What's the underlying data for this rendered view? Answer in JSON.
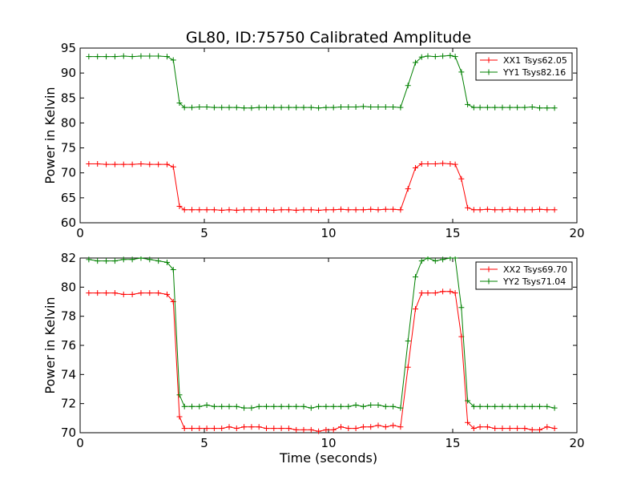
{
  "figure": {
    "title": "GL80, ID:75750 Calibrated Amplitude"
  },
  "chart_data": [
    {
      "type": "line",
      "title": "GL80, ID:75750 Calibrated Amplitude",
      "xlabel": "",
      "ylabel": "Power in Kelvin",
      "xlim": [
        0,
        20
      ],
      "ylim": [
        60,
        95
      ],
      "xticks": [
        0,
        5,
        10,
        15,
        20
      ],
      "yticks": [
        60,
        65,
        70,
        75,
        80,
        85,
        90,
        95
      ],
      "xtick_labels": [
        "0",
        "5",
        "10",
        "15",
        "20"
      ],
      "ytick_labels": [
        "60",
        "65",
        "70",
        "75",
        "80",
        "85",
        "90",
        "95"
      ],
      "grid": false,
      "legend_position": "top-right",
      "x": [
        0.35,
        0.7,
        1.05,
        1.4,
        1.75,
        2.1,
        2.45,
        2.8,
        3.15,
        3.5,
        3.75,
        4.0,
        4.2,
        4.5,
        4.8,
        5.1,
        5.4,
        5.7,
        6.0,
        6.3,
        6.6,
        6.9,
        7.2,
        7.5,
        7.8,
        8.1,
        8.4,
        8.7,
        9.0,
        9.3,
        9.6,
        9.9,
        10.2,
        10.5,
        10.8,
        11.1,
        11.4,
        11.7,
        12.0,
        12.3,
        12.6,
        12.9,
        13.2,
        13.5,
        13.75,
        14.0,
        14.3,
        14.6,
        14.9,
        15.1,
        15.35,
        15.6,
        15.85,
        16.1,
        16.4,
        16.7,
        17.0,
        17.3,
        17.6,
        17.9,
        18.2,
        18.5,
        18.8,
        19.1
      ],
      "series": [
        {
          "name": "XX1 Tsys62.05",
          "color": "#ff0000",
          "values": [
            71.8,
            71.8,
            71.7,
            71.7,
            71.7,
            71.7,
            71.8,
            71.7,
            71.7,
            71.7,
            71.2,
            63.3,
            62.6,
            62.6,
            62.6,
            62.6,
            62.6,
            62.5,
            62.6,
            62.5,
            62.6,
            62.6,
            62.6,
            62.6,
            62.5,
            62.6,
            62.6,
            62.5,
            62.6,
            62.6,
            62.5,
            62.6,
            62.6,
            62.7,
            62.6,
            62.6,
            62.6,
            62.7,
            62.6,
            62.7,
            62.7,
            62.6,
            66.8,
            71.0,
            71.8,
            71.8,
            71.8,
            71.9,
            71.8,
            71.7,
            68.8,
            63.0,
            62.6,
            62.6,
            62.7,
            62.6,
            62.6,
            62.7,
            62.6,
            62.6,
            62.6,
            62.7,
            62.6,
            62.6
          ]
        },
        {
          "name": "YY1 Tsys82.16",
          "color": "#008000",
          "values": [
            93.3,
            93.3,
            93.3,
            93.3,
            93.4,
            93.3,
            93.4,
            93.4,
            93.4,
            93.3,
            92.6,
            84.0,
            83.1,
            83.1,
            83.2,
            83.2,
            83.1,
            83.1,
            83.1,
            83.1,
            83.0,
            83.0,
            83.1,
            83.1,
            83.1,
            83.1,
            83.1,
            83.1,
            83.1,
            83.1,
            83.0,
            83.1,
            83.1,
            83.2,
            83.2,
            83.2,
            83.3,
            83.2,
            83.2,
            83.2,
            83.2,
            83.1,
            87.5,
            92.1,
            93.2,
            93.4,
            93.3,
            93.4,
            93.5,
            93.3,
            90.2,
            83.7,
            83.1,
            83.1,
            83.1,
            83.1,
            83.1,
            83.1,
            83.1,
            83.1,
            83.2,
            83.0,
            83.0,
            83.0
          ]
        }
      ]
    },
    {
      "type": "line",
      "title": "",
      "xlabel": "Time (seconds)",
      "ylabel": "Power in Kelvin",
      "xlim": [
        0,
        20
      ],
      "ylim": [
        70,
        82
      ],
      "xticks": [
        0,
        5,
        10,
        15,
        20
      ],
      "yticks": [
        70,
        72,
        74,
        76,
        78,
        80,
        82
      ],
      "xtick_labels": [
        "0",
        "5",
        "10",
        "15",
        "20"
      ],
      "ytick_labels": [
        "70",
        "72",
        "74",
        "76",
        "78",
        "80",
        "82"
      ],
      "grid": false,
      "legend_position": "top-right",
      "x": [
        0.35,
        0.7,
        1.05,
        1.4,
        1.75,
        2.1,
        2.45,
        2.8,
        3.15,
        3.5,
        3.75,
        4.0,
        4.2,
        4.5,
        4.8,
        5.1,
        5.4,
        5.7,
        6.0,
        6.3,
        6.6,
        6.9,
        7.2,
        7.5,
        7.8,
        8.1,
        8.4,
        8.7,
        9.0,
        9.3,
        9.6,
        9.9,
        10.2,
        10.5,
        10.8,
        11.1,
        11.4,
        11.7,
        12.0,
        12.3,
        12.6,
        12.9,
        13.2,
        13.5,
        13.75,
        14.0,
        14.3,
        14.6,
        14.9,
        15.1,
        15.35,
        15.6,
        15.85,
        16.1,
        16.4,
        16.7,
        17.0,
        17.3,
        17.6,
        17.9,
        18.2,
        18.5,
        18.8,
        19.1
      ],
      "series": [
        {
          "name": "XX2 Tsys69.70",
          "color": "#ff0000",
          "values": [
            79.6,
            79.6,
            79.6,
            79.6,
            79.5,
            79.5,
            79.6,
            79.6,
            79.6,
            79.5,
            79.0,
            71.1,
            70.3,
            70.3,
            70.3,
            70.3,
            70.3,
            70.3,
            70.4,
            70.3,
            70.4,
            70.4,
            70.4,
            70.3,
            70.3,
            70.3,
            70.3,
            70.2,
            70.2,
            70.2,
            70.1,
            70.2,
            70.2,
            70.4,
            70.3,
            70.3,
            70.4,
            70.4,
            70.5,
            70.4,
            70.5,
            70.4,
            74.5,
            78.5,
            79.6,
            79.6,
            79.6,
            79.7,
            79.7,
            79.6,
            76.6,
            70.7,
            70.3,
            70.4,
            70.4,
            70.3,
            70.3,
            70.3,
            70.3,
            70.3,
            70.2,
            70.2,
            70.4,
            70.3
          ]
        },
        {
          "name": "YY2 Tsys71.04",
          "color": "#008000",
          "values": [
            81.9,
            81.8,
            81.8,
            81.8,
            81.9,
            81.9,
            82.0,
            81.9,
            81.8,
            81.7,
            81.2,
            72.6,
            71.8,
            71.8,
            71.8,
            71.9,
            71.8,
            71.8,
            71.8,
            71.8,
            71.7,
            71.7,
            71.8,
            71.8,
            71.8,
            71.8,
            71.8,
            71.8,
            71.8,
            71.7,
            71.8,
            71.8,
            71.8,
            71.8,
            71.8,
            71.9,
            71.8,
            71.9,
            71.9,
            71.8,
            71.8,
            71.7,
            76.3,
            80.7,
            81.8,
            82.0,
            81.8,
            81.9,
            82.0,
            82.0,
            78.6,
            72.2,
            71.8,
            71.8,
            71.8,
            71.8,
            71.8,
            71.8,
            71.8,
            71.8,
            71.8,
            71.8,
            71.8,
            71.7
          ]
        }
      ]
    }
  ]
}
